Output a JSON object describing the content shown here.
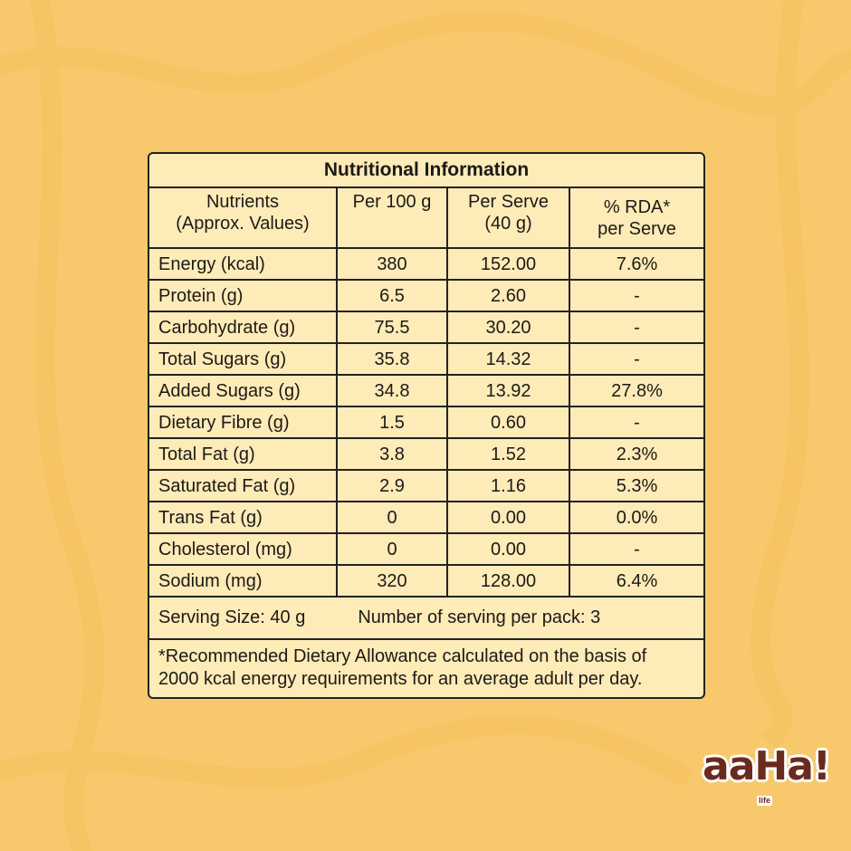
{
  "colors": {
    "background": "#f8c96c",
    "table_bg": "#fdebb8",
    "border": "#222222",
    "logo": "#6b2a1e"
  },
  "table": {
    "title": "Nutritional Information",
    "headers": [
      [
        "Nutrients",
        "(Approx. Values)"
      ],
      [
        "Per 100 g",
        ""
      ],
      [
        "Per Serve",
        "(40 g)"
      ],
      [
        "% RDA*",
        "per Serve"
      ]
    ],
    "rows": [
      {
        "nutrient": "Energy (kcal)",
        "per100": "380",
        "perServe": "152.00",
        "rda": "7.6%"
      },
      {
        "nutrient": "Protein (g)",
        "per100": "6.5",
        "perServe": "2.60",
        "rda": "-"
      },
      {
        "nutrient": "Carbohydrate (g)",
        "per100": "75.5",
        "perServe": "30.20",
        "rda": "-"
      },
      {
        "nutrient": "Total Sugars (g)",
        "per100": "35.8",
        "perServe": "14.32",
        "rda": "-"
      },
      {
        "nutrient": "Added Sugars (g)",
        "per100": "34.8",
        "perServe": "13.92",
        "rda": "27.8%"
      },
      {
        "nutrient": "Dietary Fibre (g)",
        "per100": "1.5",
        "perServe": "0.60",
        "rda": "-"
      },
      {
        "nutrient": "Total Fat (g)",
        "per100": "3.8",
        "perServe": "1.52",
        "rda": "2.3%"
      },
      {
        "nutrient": "Saturated Fat (g)",
        "per100": "2.9",
        "perServe": "1.16",
        "rda": "5.3%"
      },
      {
        "nutrient": "Trans Fat (g)",
        "per100": "0",
        "perServe": "0.00",
        "rda": "0.0%"
      },
      {
        "nutrient": "Cholesterol (mg)",
        "per100": "0",
        "perServe": "0.00",
        "rda": "-"
      },
      {
        "nutrient": "Sodium (mg)",
        "per100": "320",
        "perServe": "128.00",
        "rda": "6.4%"
      }
    ],
    "serving_size": "Serving Size: 40 g",
    "servings_per_pack": "Number of serving per pack: 3",
    "footnote_line1": "*Recommended Dietary Allowance calculated on the basis of",
    "footnote_line2": "2000 kcal energy requirements for an average adult per day."
  },
  "logo": {
    "text": "aaHa!",
    "sub": "life"
  }
}
